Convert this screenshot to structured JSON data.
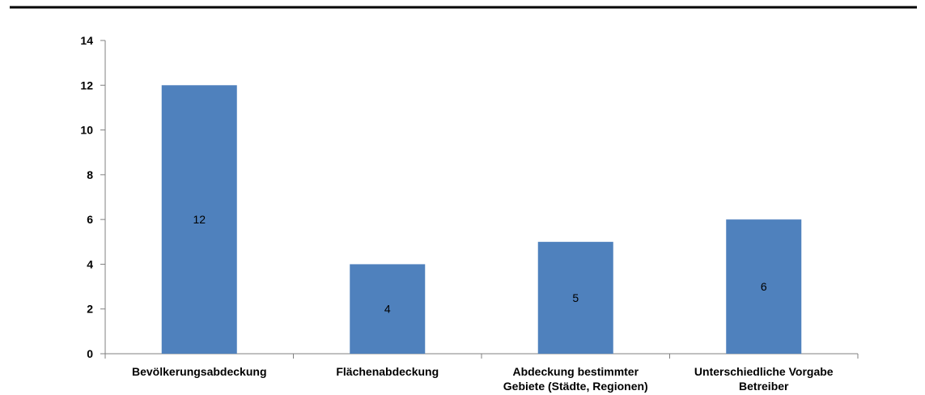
{
  "colors": {
    "bar": "#4F81BD",
    "axis": "#808080",
    "rule": "#000000"
  },
  "chart_data": {
    "type": "bar",
    "categories": [
      [
        "Bevölkerungsabdeckung"
      ],
      [
        "Flächenabdeckung"
      ],
      [
        "Abdeckung bestimmter",
        "Gebiete (Städte, Regionen)"
      ],
      [
        "Unterschiedliche Vorgabe",
        "Betreiber"
      ]
    ],
    "values": [
      12,
      4,
      5,
      6
    ],
    "data_labels": [
      "12",
      "4",
      "5",
      "6"
    ],
    "yticks": [
      0,
      2,
      4,
      6,
      8,
      10,
      12,
      14
    ],
    "ylim": [
      0,
      14
    ],
    "grid": false,
    "legend": "none"
  }
}
